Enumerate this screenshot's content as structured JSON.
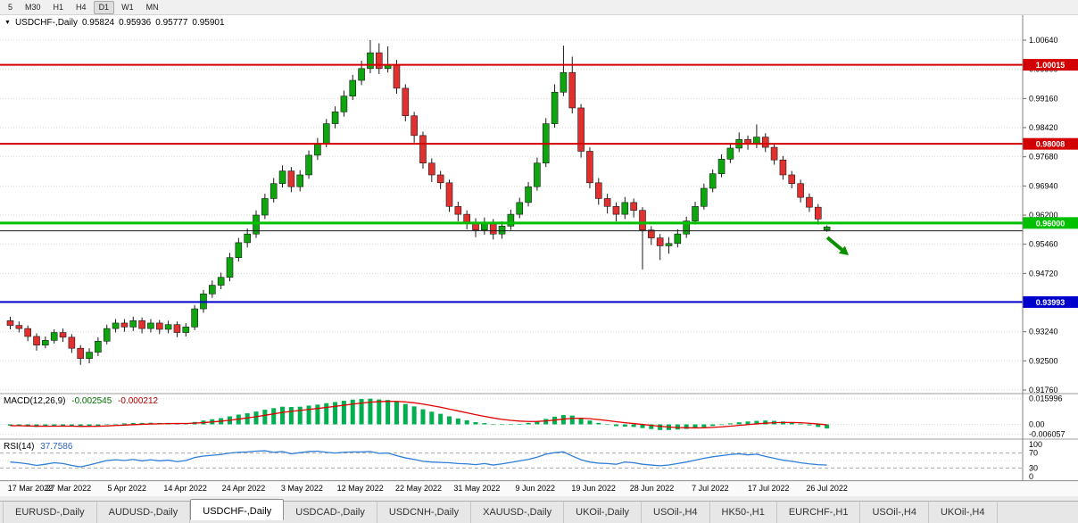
{
  "toolbar": {
    "timeframes": [
      {
        "label": "5",
        "active": false
      },
      {
        "label": "M30",
        "active": false
      },
      {
        "label": "H1",
        "active": false
      },
      {
        "label": "H4",
        "active": false
      },
      {
        "label": "D1",
        "active": true
      },
      {
        "label": "W1",
        "active": false
      },
      {
        "label": "MN",
        "active": false
      }
    ]
  },
  "header": {
    "symbol": "USDCHF-,Daily",
    "open": "0.95824",
    "high": "0.95936",
    "low": "0.95777",
    "close": "0.95901"
  },
  "indicators": {
    "macd": {
      "name": "MACD(12,26,9)",
      "main_value": "-0.002545",
      "signal_value": "-0.000212",
      "axis": [
        "0.015996",
        "0.00",
        "-0.006057"
      ],
      "histogram_color": "#00b050",
      "signal_color": "#e00000",
      "histogram": [
        -0.0008,
        -0.001,
        -0.0013,
        -0.0016,
        -0.0014,
        -0.001,
        -0.0009,
        -0.0013,
        -0.0016,
        -0.0013,
        -0.0008,
        -0.0002,
        0.0003,
        0.0006,
        0.0009,
        0.0009,
        0.001,
        0.0009,
        0.0009,
        0.0007,
        0.0008,
        0.0015,
        0.0024,
        0.0032,
        0.0039,
        0.005,
        0.0061,
        0.0069,
        0.008,
        0.0091,
        0.0101,
        0.011,
        0.0108,
        0.011,
        0.0117,
        0.0123,
        0.0132,
        0.0139,
        0.0147,
        0.0154,
        0.0158,
        0.016,
        0.0155,
        0.0152,
        0.0142,
        0.0127,
        0.0112,
        0.0094,
        0.0079,
        0.0066,
        0.005,
        0.0037,
        0.0025,
        0.0014,
        0.0008,
        0.0,
        -0.0003,
        -0.0001,
        0.0003,
        0.0009,
        0.0019,
        0.0034,
        0.0048,
        0.0058,
        0.0055,
        0.0041,
        0.0024,
        0.0009,
        -0.0002,
        -0.0011,
        -0.0014,
        -0.0016,
        -0.0023,
        -0.0029,
        -0.0035,
        -0.0035,
        -0.0032,
        -0.0028,
        -0.0024,
        -0.0018,
        -0.001,
        -0.0002,
        0.0006,
        0.0013,
        0.0018,
        0.0022,
        0.0024,
        0.0022,
        0.0018,
        0.0012,
        0.0004,
        -0.0006,
        -0.0016,
        -0.002545
      ]
    },
    "rsi": {
      "name": "RSI(14)",
      "value": "37.7586",
      "axis": [
        "100",
        "70",
        "30",
        "0"
      ],
      "levels": [
        70,
        30
      ],
      "line_color": "#2f7ed8",
      "values": [
        46,
        44,
        41,
        37,
        40,
        44,
        42,
        37,
        33,
        38,
        44,
        50,
        52,
        50,
        53,
        49,
        52,
        49,
        51,
        47,
        50,
        58,
        62,
        64,
        66,
        70,
        72,
        73,
        75,
        76,
        72,
        74,
        68,
        71,
        74,
        75,
        72,
        70,
        72,
        73,
        73,
        74,
        69,
        70,
        63,
        57,
        53,
        48,
        46,
        45,
        44,
        42,
        41,
        39,
        42,
        38,
        41,
        45,
        49,
        53,
        59,
        67,
        71,
        73,
        62,
        52,
        46,
        43,
        42,
        40,
        46,
        44,
        40,
        38,
        36,
        38,
        42,
        46,
        51,
        56,
        60,
        63,
        66,
        68,
        65,
        67,
        61,
        56,
        51,
        48,
        44,
        41,
        39,
        37.76
      ]
    }
  },
  "chart_data": {
    "type": "candlestick",
    "symbol": "USDCHF-",
    "timeframe": "Daily",
    "ohlc_last": {
      "open": 0.95824,
      "high": 0.95936,
      "low": 0.95777,
      "close": 0.95901
    },
    "colors": {
      "background": "#ffffff",
      "grid": "#d9d9d9",
      "up_candle": "#0fa50f",
      "down_candle": "#e03030",
      "wick": "#1a1a1a"
    },
    "y_axis_ticks": [
      "1.00640",
      "0.99900",
      "0.99160",
      "0.98420",
      "0.97680",
      "0.96940",
      "0.96200",
      "0.95460",
      "0.94720",
      "0.93980",
      "0.93240",
      "0.92500",
      "0.91760"
    ],
    "x_labels": [
      "17 Mar 2022",
      "27 Mar 2022",
      "5 Apr 2022",
      "14 Apr 2022",
      "24 Apr 2022",
      "3 May 2022",
      "12 May 2022",
      "22 May 2022",
      "31 May 2022",
      "9 Jun 2022",
      "19 Jun 2022",
      "28 Jun 2022",
      "7 Jul 2022",
      "17 Jul 2022",
      "26 Jul 2022"
    ],
    "hlines": [
      {
        "price": 1.00015,
        "label": "1.00015",
        "color": "#d20000",
        "width": 2
      },
      {
        "price": 0.98008,
        "label": "0.98008",
        "color": "#d20000",
        "width": 2
      },
      {
        "price": 0.96,
        "label": "0.96000",
        "color": "#00c000",
        "width": 3
      },
      {
        "price": 0.958,
        "label": "",
        "color": "#1a1a1a",
        "width": 1
      },
      {
        "price": 0.93993,
        "label": "0.93993",
        "color": "#0000cd",
        "width": 2
      }
    ],
    "arrow": {
      "type": "down-right-arrow",
      "color": "#089000",
      "x_index": 93.4,
      "price_from": 0.9563,
      "price_to": 0.9518
    },
    "candles": [
      [
        0.9352,
        0.9362,
        0.933,
        0.934
      ],
      [
        0.934,
        0.935,
        0.9322,
        0.9332
      ],
      [
        0.9332,
        0.934,
        0.93,
        0.9312
      ],
      [
        0.9312,
        0.932,
        0.9276,
        0.929
      ],
      [
        0.929,
        0.9312,
        0.9282,
        0.9302
      ],
      [
        0.9302,
        0.933,
        0.9294,
        0.9322
      ],
      [
        0.9322,
        0.9332,
        0.9298,
        0.931
      ],
      [
        0.931,
        0.9318,
        0.927,
        0.9282
      ],
      [
        0.9282,
        0.929,
        0.924,
        0.9256
      ],
      [
        0.9256,
        0.9282,
        0.9244,
        0.9272
      ],
      [
        0.9272,
        0.931,
        0.9262,
        0.93
      ],
      [
        0.93,
        0.9342,
        0.9292,
        0.9332
      ],
      [
        0.9332,
        0.9356,
        0.9322,
        0.9346
      ],
      [
        0.9346,
        0.9356,
        0.9324,
        0.9336
      ],
      [
        0.9336,
        0.9362,
        0.9326,
        0.9352
      ],
      [
        0.9352,
        0.936,
        0.932,
        0.9332
      ],
      [
        0.9332,
        0.9356,
        0.9322,
        0.9346
      ],
      [
        0.9346,
        0.9354,
        0.9318,
        0.933
      ],
      [
        0.933,
        0.9352,
        0.932,
        0.9342
      ],
      [
        0.9342,
        0.935,
        0.931,
        0.9322
      ],
      [
        0.9322,
        0.9346,
        0.9312,
        0.9336
      ],
      [
        0.9336,
        0.9392,
        0.9328,
        0.9382
      ],
      [
        0.9382,
        0.943,
        0.9372,
        0.942
      ],
      [
        0.942,
        0.9454,
        0.941,
        0.9442
      ],
      [
        0.9442,
        0.9474,
        0.9432,
        0.9462
      ],
      [
        0.9462,
        0.9524,
        0.9452,
        0.9512
      ],
      [
        0.9512,
        0.9562,
        0.9502,
        0.955
      ],
      [
        0.955,
        0.9586,
        0.9538,
        0.9572
      ],
      [
        0.9572,
        0.9632,
        0.9562,
        0.962
      ],
      [
        0.962,
        0.9674,
        0.961,
        0.9662
      ],
      [
        0.9662,
        0.9714,
        0.9652,
        0.97
      ],
      [
        0.97,
        0.9746,
        0.969,
        0.9732
      ],
      [
        0.9732,
        0.9742,
        0.9678,
        0.9692
      ],
      [
        0.9692,
        0.9734,
        0.968,
        0.9722
      ],
      [
        0.9722,
        0.9784,
        0.9712,
        0.9772
      ],
      [
        0.9772,
        0.9816,
        0.976,
        0.9802
      ],
      [
        0.9802,
        0.9864,
        0.9792,
        0.9852
      ],
      [
        0.9852,
        0.9896,
        0.984,
        0.9882
      ],
      [
        0.9882,
        0.9936,
        0.987,
        0.9922
      ],
      [
        0.9922,
        0.9976,
        0.9912,
        0.9962
      ],
      [
        0.9962,
        1.0012,
        0.995,
        0.9992
      ],
      [
        0.9992,
        1.0064,
        0.998,
        1.0032
      ],
      [
        1.0032,
        1.0056,
        0.9978,
        0.9992
      ],
      [
        0.9992,
        1.0048,
        0.9982,
        1.0002
      ],
      [
        1.0002,
        1.0014,
        0.9928,
        0.9942
      ],
      [
        0.9942,
        0.9952,
        0.9858,
        0.9872
      ],
      [
        0.9872,
        0.9882,
        0.9804,
        0.9822
      ],
      [
        0.9822,
        0.9832,
        0.9738,
        0.9752
      ],
      [
        0.9752,
        0.9764,
        0.9704,
        0.9722
      ],
      [
        0.9722,
        0.9732,
        0.9686,
        0.9702
      ],
      [
        0.9702,
        0.971,
        0.9628,
        0.9642
      ],
      [
        0.9642,
        0.9654,
        0.9604,
        0.9622
      ],
      [
        0.9622,
        0.9632,
        0.9584,
        0.9602
      ],
      [
        0.9602,
        0.9612,
        0.9564,
        0.9582
      ],
      [
        0.9582,
        0.9614,
        0.957,
        0.9602
      ],
      [
        0.9602,
        0.961,
        0.9558,
        0.9572
      ],
      [
        0.9572,
        0.9604,
        0.956,
        0.9592
      ],
      [
        0.9592,
        0.9634,
        0.9582,
        0.9622
      ],
      [
        0.9622,
        0.9664,
        0.9612,
        0.9652
      ],
      [
        0.9652,
        0.9704,
        0.9642,
        0.9692
      ],
      [
        0.9692,
        0.9766,
        0.9682,
        0.9752
      ],
      [
        0.9752,
        0.9866,
        0.9742,
        0.9852
      ],
      [
        0.9852,
        0.9952,
        0.9842,
        0.9932
      ],
      [
        0.9932,
        1.005,
        0.9922,
        0.9982
      ],
      [
        0.9982,
        1.0022,
        0.9878,
        0.9892
      ],
      [
        0.9892,
        0.9902,
        0.9766,
        0.9782
      ],
      [
        0.9782,
        0.9792,
        0.9688,
        0.9702
      ],
      [
        0.9702,
        0.9714,
        0.9646,
        0.9662
      ],
      [
        0.9662,
        0.9674,
        0.9624,
        0.9642
      ],
      [
        0.9642,
        0.9652,
        0.9604,
        0.9622
      ],
      [
        0.9622,
        0.9666,
        0.961,
        0.9652
      ],
      [
        0.9652,
        0.9662,
        0.9614,
        0.9632
      ],
      [
        0.9632,
        0.964,
        0.9482,
        0.9582
      ],
      [
        0.9582,
        0.9592,
        0.9544,
        0.9562
      ],
      [
        0.9562,
        0.9572,
        0.9506,
        0.9542
      ],
      [
        0.9542,
        0.9564,
        0.9522,
        0.9548
      ],
      [
        0.9548,
        0.9584,
        0.9538,
        0.9572
      ],
      [
        0.9572,
        0.9616,
        0.9562,
        0.9605
      ],
      [
        0.9605,
        0.9654,
        0.9596,
        0.9642
      ],
      [
        0.9642,
        0.97,
        0.9634,
        0.9688
      ],
      [
        0.9688,
        0.9736,
        0.9678,
        0.9725
      ],
      [
        0.9725,
        0.9774,
        0.9716,
        0.9762
      ],
      [
        0.9762,
        0.9802,
        0.9752,
        0.979
      ],
      [
        0.979,
        0.983,
        0.978,
        0.9812
      ],
      [
        0.9812,
        0.9822,
        0.9786,
        0.98
      ],
      [
        0.98,
        0.985,
        0.979,
        0.9818
      ],
      [
        0.9818,
        0.9828,
        0.978,
        0.9792
      ],
      [
        0.9792,
        0.9802,
        0.9748,
        0.976
      ],
      [
        0.976,
        0.977,
        0.971,
        0.9722
      ],
      [
        0.9722,
        0.9732,
        0.9688,
        0.97
      ],
      [
        0.97,
        0.971,
        0.9652,
        0.9665
      ],
      [
        0.9665,
        0.9675,
        0.9628,
        0.964
      ],
      [
        0.964,
        0.9648,
        0.9596,
        0.961
      ],
      [
        0.95824,
        0.95936,
        0.95777,
        0.95901
      ]
    ]
  },
  "tabs": [
    {
      "label": "EURUSD-,Daily",
      "active": false
    },
    {
      "label": "AUDUSD-,Daily",
      "active": false
    },
    {
      "label": "USDCHF-,Daily",
      "active": true
    },
    {
      "label": "USDCAD-,Daily",
      "active": false
    },
    {
      "label": "USDCNH-,Daily",
      "active": false
    },
    {
      "label": "XAUUSD-,Daily",
      "active": false
    },
    {
      "label": "UKOil-,Daily",
      "active": false
    },
    {
      "label": "USOil-,H4",
      "active": false
    },
    {
      "label": "HK50-,H1",
      "active": false
    },
    {
      "label": "EURCHF-,H1",
      "active": false
    },
    {
      "label": "USOil-,H4",
      "active": false
    },
    {
      "label": "UKOil-,H4",
      "active": false
    }
  ]
}
